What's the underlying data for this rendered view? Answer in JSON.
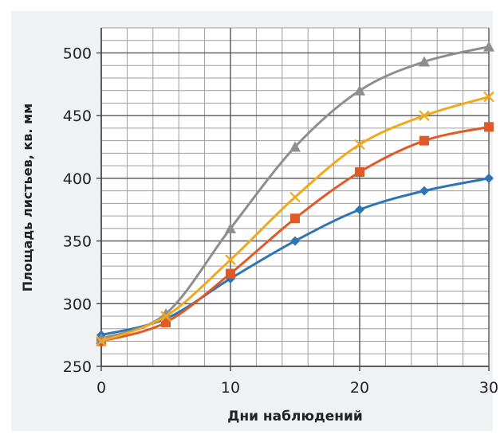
{
  "chart_data": {
    "type": "line",
    "title": "",
    "xlabel": "Дни наблюдений",
    "ylabel": "Площадь листьев, кв. мм",
    "xlim": [
      0,
      30
    ],
    "ylim": [
      250,
      520
    ],
    "x_ticks": [
      0,
      10,
      20,
      30
    ],
    "y_ticks": [
      250,
      300,
      350,
      400,
      450,
      500
    ],
    "x_tick_labels": [
      "0",
      "10",
      "20",
      "30"
    ],
    "y_tick_labels": [
      "250",
      "300",
      "350",
      "400",
      "450",
      "500"
    ],
    "x_minor_step": 2,
    "y_minor_step": 10,
    "grid": true,
    "smooth": true,
    "legend": "none",
    "x": [
      0,
      5,
      10,
      15,
      20,
      25,
      30
    ],
    "series": [
      {
        "values": [
          275,
          288,
          320,
          350,
          375,
          390,
          400
        ],
        "color": "#2e75b6",
        "marker": "diamond"
      },
      {
        "values": [
          270,
          285,
          324,
          368,
          405,
          430,
          441
        ],
        "color": "#e05a28",
        "marker": "square"
      },
      {
        "values": [
          272,
          292,
          360,
          425,
          470,
          493,
          505
        ],
        "color": "#8e8e8e",
        "marker": "triangle"
      },
      {
        "values": [
          270,
          290,
          335,
          385,
          427,
          450,
          465
        ],
        "color": "#f2a81d",
        "marker": "x"
      }
    ]
  }
}
